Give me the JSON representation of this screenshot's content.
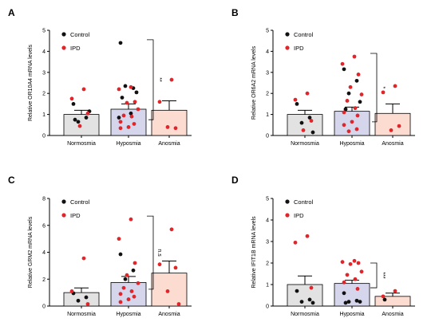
{
  "colors": {
    "control": "#111111",
    "ipd": "#e0252b",
    "normosmia_fill": "#e2e2e2",
    "hyposmia_fill": "#d5d5ec",
    "anosmia_fill": "#fcdcd1"
  },
  "legend": {
    "control": "Control",
    "ipd": "IPD"
  },
  "chart_data": [
    {
      "type": "bar",
      "panel": "A",
      "ylabel": "Relative OR10A4 mRNA levels",
      "ylim": [
        0,
        5
      ],
      "yticks": [
        "0",
        "1",
        "2",
        "3",
        "4",
        "5"
      ],
      "categories": [
        "Normosmia",
        "Hyposmia",
        "Anosmia"
      ],
      "values": [
        1.0,
        1.25,
        1.2
      ],
      "sem": [
        0.2,
        0.25,
        0.45
      ],
      "significance": "**",
      "points": {
        "control": [
          [
            1.5,
            0.85,
            0.65,
            1.15,
            0.75
          ],
          [
            4.4,
            2.25,
            2.35,
            2.05,
            1.8,
            1.05,
            0.85
          ]
        ],
        "ipd": [
          [
            2.2,
            1.75,
            1.05,
            0.45
          ],
          [
            2.3,
            2.2,
            1.6,
            1.55,
            1.25,
            0.95,
            0.9,
            0.65,
            0.55,
            0.4,
            0.35
          ],
          [
            2.65,
            1.6,
            0.35,
            0.4
          ]
        ]
      }
    },
    {
      "type": "bar",
      "panel": "B",
      "ylabel": "Relative OR6A2 mRNA levels",
      "ylim": [
        0,
        5
      ],
      "yticks": [
        "0",
        "1",
        "2",
        "3",
        "4",
        "5"
      ],
      "categories": [
        "Normosmia",
        "Hyposmia",
        "Anosmia"
      ],
      "values": [
        1.0,
        1.15,
        1.05
      ],
      "sem": [
        0.2,
        0.2,
        0.45
      ],
      "significance": "*",
      "points": {
        "control": [
          [
            1.5,
            0.85,
            0.6,
            0.15
          ],
          [
            3.15,
            2.6,
            2.0,
            1.6,
            1.25
          ]
        ],
        "ipd": [
          [
            2.0,
            1.7,
            0.7,
            0.25
          ],
          [
            3.75,
            3.4,
            2.9,
            2.3,
            1.95,
            1.65,
            1.3,
            1.1,
            0.95,
            0.65,
            0.5,
            0.3,
            0.2
          ],
          [
            2.35,
            2.05,
            0.45,
            0.25
          ]
        ]
      }
    },
    {
      "type": "bar",
      "panel": "C",
      "ylabel": "Relative GRM2 mRNA levels",
      "ylim": [
        0,
        8
      ],
      "yticks": [
        "0",
        "2",
        "4",
        "6",
        "8"
      ],
      "categories": [
        "Normosmia",
        "Hyposmia",
        "Anosmia"
      ],
      "values": [
        1.0,
        1.75,
        2.45
      ],
      "sem": [
        0.35,
        0.45,
        0.9
      ],
      "significance": "n.s",
      "points": {
        "control": [
          [
            0.95,
            0.65,
            0.4
          ],
          [
            3.85,
            2.65,
            2.0
          ]
        ],
        "ipd": [
          [
            3.55,
            1.1,
            0.15
          ],
          [
            6.45,
            5.0,
            3.2,
            2.3,
            1.7,
            1.35,
            1.1,
            0.9,
            0.7,
            0.5,
            0.3
          ],
          [
            5.7,
            3.1,
            2.85,
            1.1,
            0.15
          ]
        ]
      }
    },
    {
      "type": "bar",
      "panel": "D",
      "ylabel": "Relative IFIT1B mRNA levels",
      "ylim": [
        0,
        5
      ],
      "yticks": [
        "0",
        "1",
        "2",
        "3",
        "4",
        "5"
      ],
      "categories": [
        "Normosmia",
        "Hyposmia",
        "Anosmia"
      ],
      "values": [
        1.0,
        1.05,
        0.45
      ],
      "sem": [
        0.4,
        0.15,
        0.15
      ],
      "significance": "***",
      "points": {
        "control": [
          [
            0.7,
            0.3,
            0.2,
            0.15
          ],
          [
            0.6,
            0.25,
            0.2,
            0.2,
            0.15
          ],
          [
            0.3
          ]
        ],
        "ipd": [
          [
            3.25,
            2.95,
            0.85
          ],
          [
            2.1,
            2.05,
            2.0,
            1.95,
            1.6,
            1.45,
            1.25,
            1.1,
            0.8
          ],
          [
            0.7,
            0.45
          ]
        ]
      }
    }
  ]
}
